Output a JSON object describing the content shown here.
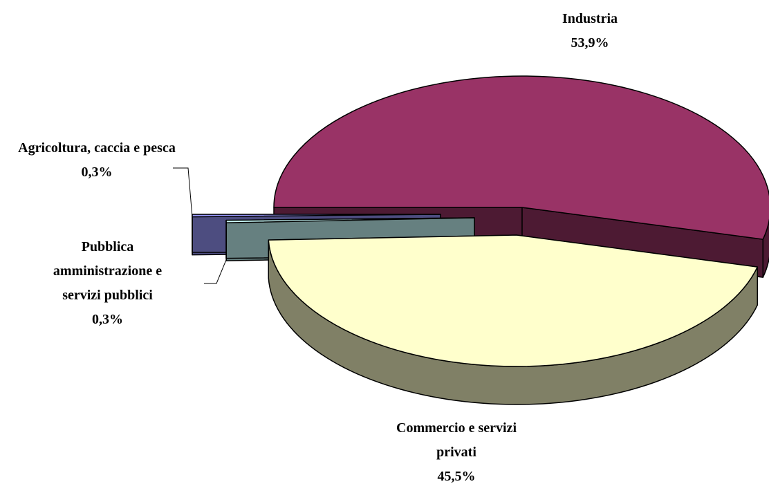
{
  "chart_data": {
    "type": "pie",
    "three_d": true,
    "categories": [
      "Industria",
      "Commercio e servizi privati",
      "Pubblica amministrazione e servizi pubblici",
      "Agricoltura, caccia e pesca"
    ],
    "values": [
      53.9,
      45.5,
      0.3,
      0.3
    ],
    "value_labels": [
      "53,9%",
      "45,5%",
      "0,3%",
      "0,3%"
    ],
    "colors": [
      "#993366",
      "#ffffcc",
      "#ccffff",
      "#9999ff"
    ]
  }
}
